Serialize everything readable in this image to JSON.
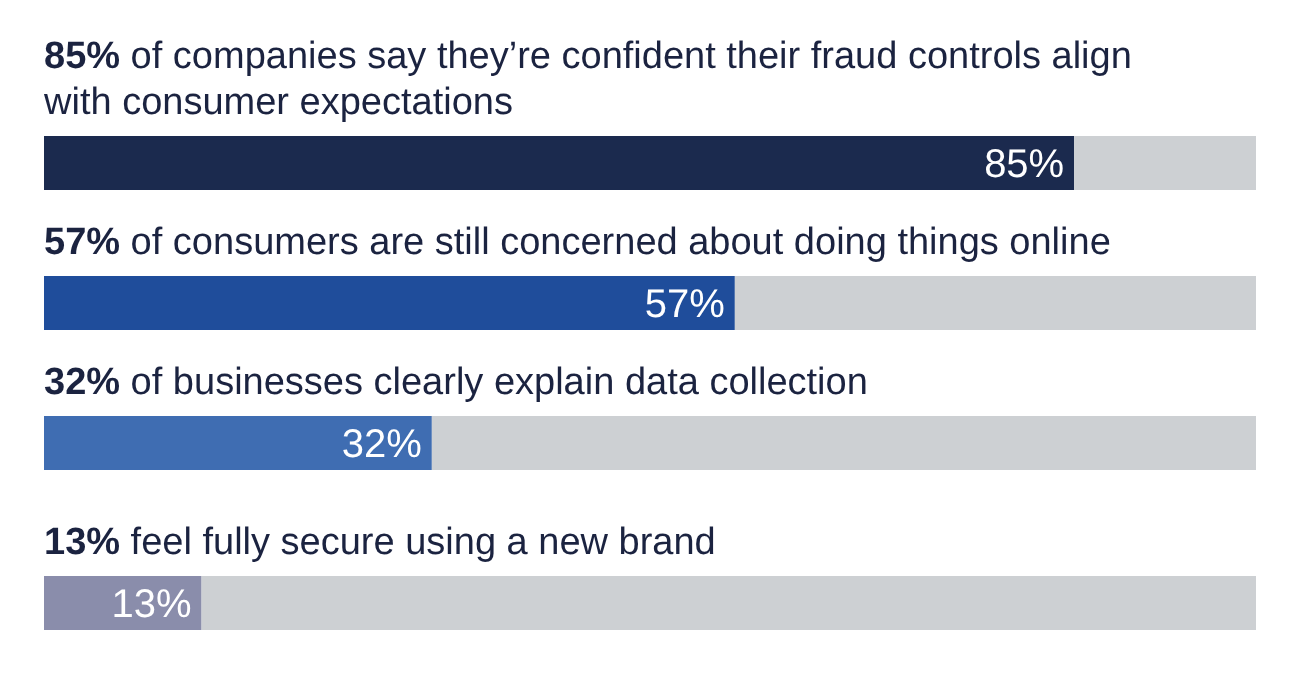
{
  "chart_data": {
    "type": "bar",
    "orientation": "horizontal",
    "stacked": true,
    "categories": [
      "85% of companies say they’re confident their fraud controls align with consumer expectations",
      "57% of consumers are still concerned about doing things online",
      "32% of businesses clearly explain data collection",
      "13% feel fully secure using a new brand"
    ],
    "series": [
      {
        "colors": [
          "#1b2a4e",
          "#1f4d9b",
          "#3f6db2",
          "#8a8dab"
        ],
        "values": [
          85,
          57,
          32,
          13
        ],
        "value_labels": [
          "85%",
          "57%",
          "32%",
          "13%"
        ]
      },
      {
        "color": "#cdd0d3",
        "values": [
          15,
          43,
          68,
          87
        ]
      }
    ],
    "xlim": [
      0,
      100
    ]
  }
}
